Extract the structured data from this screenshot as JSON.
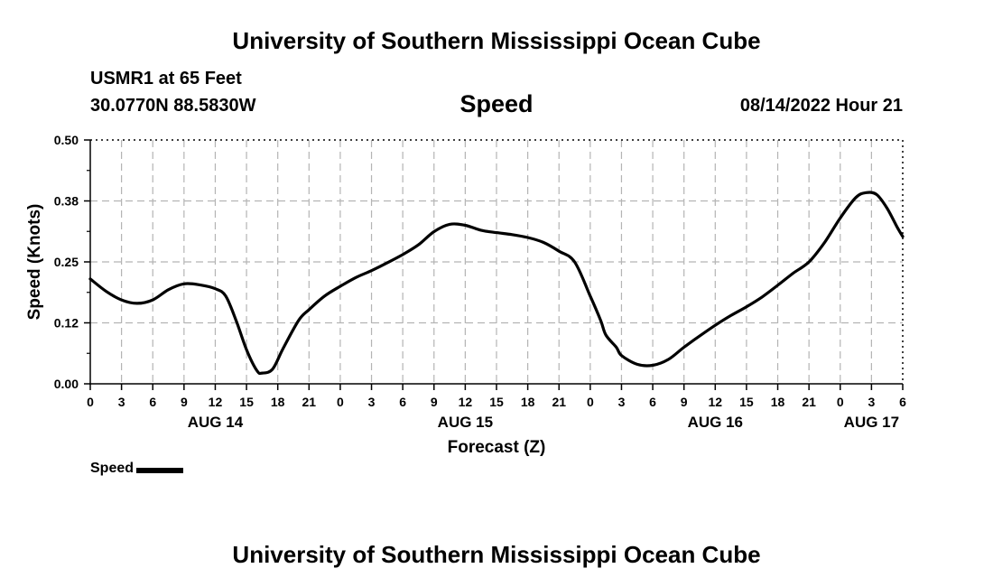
{
  "header": {
    "title": "University of Southern Mississippi Ocean Cube",
    "station": "USMR1 at 65 Feet",
    "coords": "30.0770N  88.5830W",
    "chart_name": "Speed",
    "issued": "08/14/2022 Hour 21"
  },
  "footer": {
    "title": "University of Southern Mississippi Ocean Cube"
  },
  "legend": {
    "label": "Speed",
    "color": "#000000"
  },
  "chart_data": {
    "type": "line",
    "title": "Speed",
    "xlabel": "Forecast (Z)",
    "ylabel": "Speed (Knots)",
    "xlim": [
      0,
      78
    ],
    "ylim": [
      0,
      0.5
    ],
    "grid": true,
    "legend_position": "bottom-left",
    "y_ticks": [
      0.0,
      0.125,
      0.25,
      0.375,
      0.5
    ],
    "y_tick_labels": [
      "0.00",
      "0.12",
      "0.25",
      "0.38",
      "0.50"
    ],
    "x_ticks": [
      0,
      3,
      6,
      9,
      12,
      15,
      18,
      21,
      24,
      27,
      30,
      33,
      36,
      39,
      42,
      45,
      48,
      51,
      54,
      57,
      60,
      63,
      66,
      69,
      72,
      75,
      78
    ],
    "x_tick_labels": [
      "0",
      "3",
      "6",
      "9",
      "12",
      "15",
      "18",
      "21",
      "0",
      "3",
      "6",
      "9",
      "12",
      "15",
      "18",
      "21",
      "0",
      "3",
      "6",
      "9",
      "12",
      "15",
      "18",
      "21",
      "0",
      "3",
      "6"
    ],
    "day_labels": [
      {
        "x": 12,
        "label": "AUG 14"
      },
      {
        "x": 36,
        "label": "AUG 15"
      },
      {
        "x": 60,
        "label": "AUG 16"
      },
      {
        "x": 75,
        "label": "AUG 17"
      }
    ],
    "series": [
      {
        "name": "Speed",
        "color": "#000000",
        "x": [
          0,
          1.5,
          3,
          4.5,
          6,
          7.5,
          9,
          10.5,
          12,
          13,
          14,
          15,
          16,
          16.5,
          17.5,
          18.5,
          20,
          21,
          22.5,
          24,
          25.5,
          27,
          28.5,
          30,
          31.5,
          33,
          34.5,
          36,
          37.5,
          39,
          40.5,
          42,
          43.5,
          45,
          46.5,
          48,
          49,
          49.5,
          50.5,
          51,
          52.5,
          54,
          55.5,
          57,
          58.5,
          60,
          61.5,
          63,
          64.5,
          66,
          67.5,
          69,
          70.5,
          72,
          73.5,
          74.5,
          75.5,
          76.5,
          77.5,
          78
        ],
        "y": [
          0.215,
          0.19,
          0.172,
          0.165,
          0.172,
          0.193,
          0.205,
          0.203,
          0.195,
          0.18,
          0.13,
          0.07,
          0.027,
          0.022,
          0.03,
          0.072,
          0.13,
          0.152,
          0.18,
          0.2,
          0.218,
          0.232,
          0.248,
          0.265,
          0.285,
          0.312,
          0.327,
          0.325,
          0.315,
          0.31,
          0.306,
          0.3,
          0.29,
          0.272,
          0.25,
          0.18,
          0.13,
          0.1,
          0.075,
          0.058,
          0.04,
          0.038,
          0.05,
          0.075,
          0.098,
          0.12,
          0.14,
          0.158,
          0.178,
          0.202,
          0.227,
          0.25,
          0.29,
          0.34,
          0.382,
          0.392,
          0.388,
          0.36,
          0.32,
          0.302
        ]
      }
    ]
  }
}
